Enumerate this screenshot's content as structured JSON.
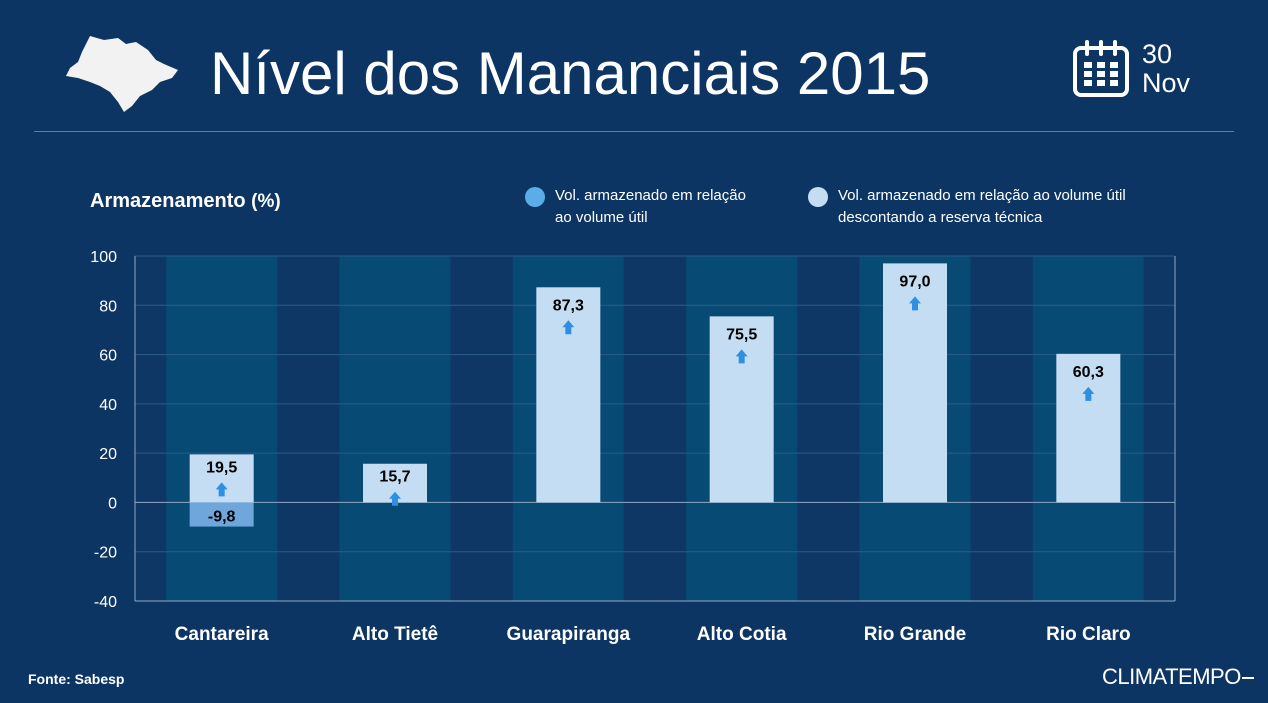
{
  "header": {
    "title": "Nível dos Mananciais 2015",
    "date_day": "30",
    "date_month": "Nov",
    "map_icon": "sao-paulo-state-map-icon",
    "calendar_icon": "calendar-icon"
  },
  "legend": {
    "items": [
      {
        "text_line1": "Vol. armazenado em relação",
        "text_line2": "ao volume útil",
        "color": "#5aade6"
      },
      {
        "text_line1": "Vol. armazenado em relação ao volume útil",
        "text_line2": "descontando a reserva técnica",
        "color": "#c5ddf3"
      }
    ]
  },
  "chart_data": {
    "type": "bar",
    "ylabel_main": "Armazenamento",
    "ylabel_unit": "(%)",
    "ylim": [
      -40,
      100
    ],
    "yticks": [
      -40,
      -20,
      0,
      20,
      40,
      60,
      80,
      100
    ],
    "categories": [
      "Cantareira",
      "Alto Tietê",
      "Guarapiranga",
      "Alto Cotia",
      "Rio Grande",
      "Rio Claro"
    ],
    "series": [
      {
        "name": "Vol. armazenado em relação ao volume útil descontando a reserva técnica",
        "values": [
          19.5,
          15.7,
          87.3,
          75.5,
          97.0,
          60.3
        ],
        "labels": [
          "19,5",
          "15,7",
          "87,3",
          "75,5",
          "97,0",
          "60,3"
        ],
        "color": "#c5ddf3"
      },
      {
        "name": "Vol. armazenado em relação ao volume útil",
        "values": [
          -9.8,
          null,
          null,
          null,
          null,
          null
        ],
        "labels": [
          "-9,8",
          "",
          "",
          "",
          "",
          ""
        ],
        "color": "#6fa6dc"
      }
    ],
    "trend": [
      "up",
      "up",
      "up",
      "up",
      "up",
      "up"
    ],
    "grid": true
  },
  "footer": {
    "source": "Fonte: Sabesp",
    "brand": "CLIMATEMPO"
  }
}
